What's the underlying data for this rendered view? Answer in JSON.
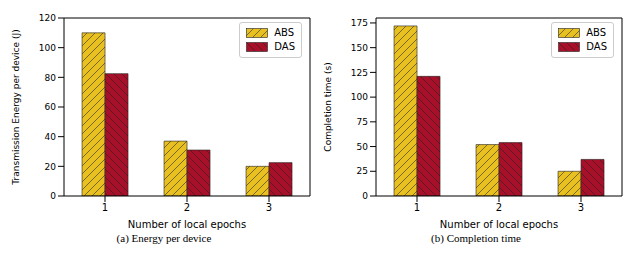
{
  "chart_data": [
    {
      "type": "bar",
      "title": "(a) Energy per device",
      "x_label": "Number of local epochs",
      "y_label": "Transmission Energy per device (J)",
      "categories": [
        "1",
        "2",
        "3"
      ],
      "series": [
        {
          "name": "ABS",
          "color": "#e8c020",
          "values": [
            110,
            37,
            20
          ]
        },
        {
          "name": "DAS",
          "color": "#a8102a",
          "values": [
            82.5,
            31,
            22.5
          ]
        }
      ],
      "ylim": [
        0,
        120
      ],
      "yticks": [
        0,
        20,
        40,
        60,
        80,
        100,
        120
      ],
      "legend": "upper right"
    },
    {
      "type": "bar",
      "title": "(b) Completion time",
      "x_label": "Number of local epochs",
      "y_label": "Completion time (s)",
      "categories": [
        "1",
        "2",
        "3"
      ],
      "series": [
        {
          "name": "ABS",
          "color": "#e8c020",
          "values": [
            172,
            52,
            25
          ]
        },
        {
          "name": "DAS",
          "color": "#a8102a",
          "values": [
            121,
            54,
            37
          ]
        }
      ],
      "ylim": [
        0,
        180
      ],
      "yticks": [
        0,
        25,
        50,
        75,
        100,
        125,
        150,
        175
      ],
      "legend": "upper right"
    }
  ]
}
